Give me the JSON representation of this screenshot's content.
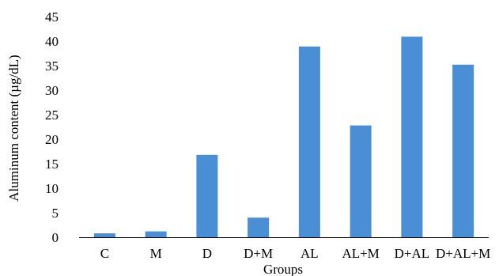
{
  "chart_data": {
    "type": "bar",
    "title": "",
    "xlabel": "Groups",
    "ylabel": "Aluminum content (µg/dL)",
    "categories": [
      "C",
      "M",
      "D",
      "D+M",
      "AL",
      "AL+M",
      "D+AL",
      "D+AL+M"
    ],
    "values": [
      0.8,
      1.2,
      16.8,
      4.0,
      38.9,
      22.8,
      40.9,
      35.2
    ],
    "ylim": [
      0,
      45
    ],
    "yticks": [
      "0",
      "5",
      "10",
      "15",
      "20",
      "25",
      "30",
      "35",
      "40",
      "45"
    ],
    "grid": false,
    "legend": "none",
    "bar_color": "#4a8fd6"
  }
}
